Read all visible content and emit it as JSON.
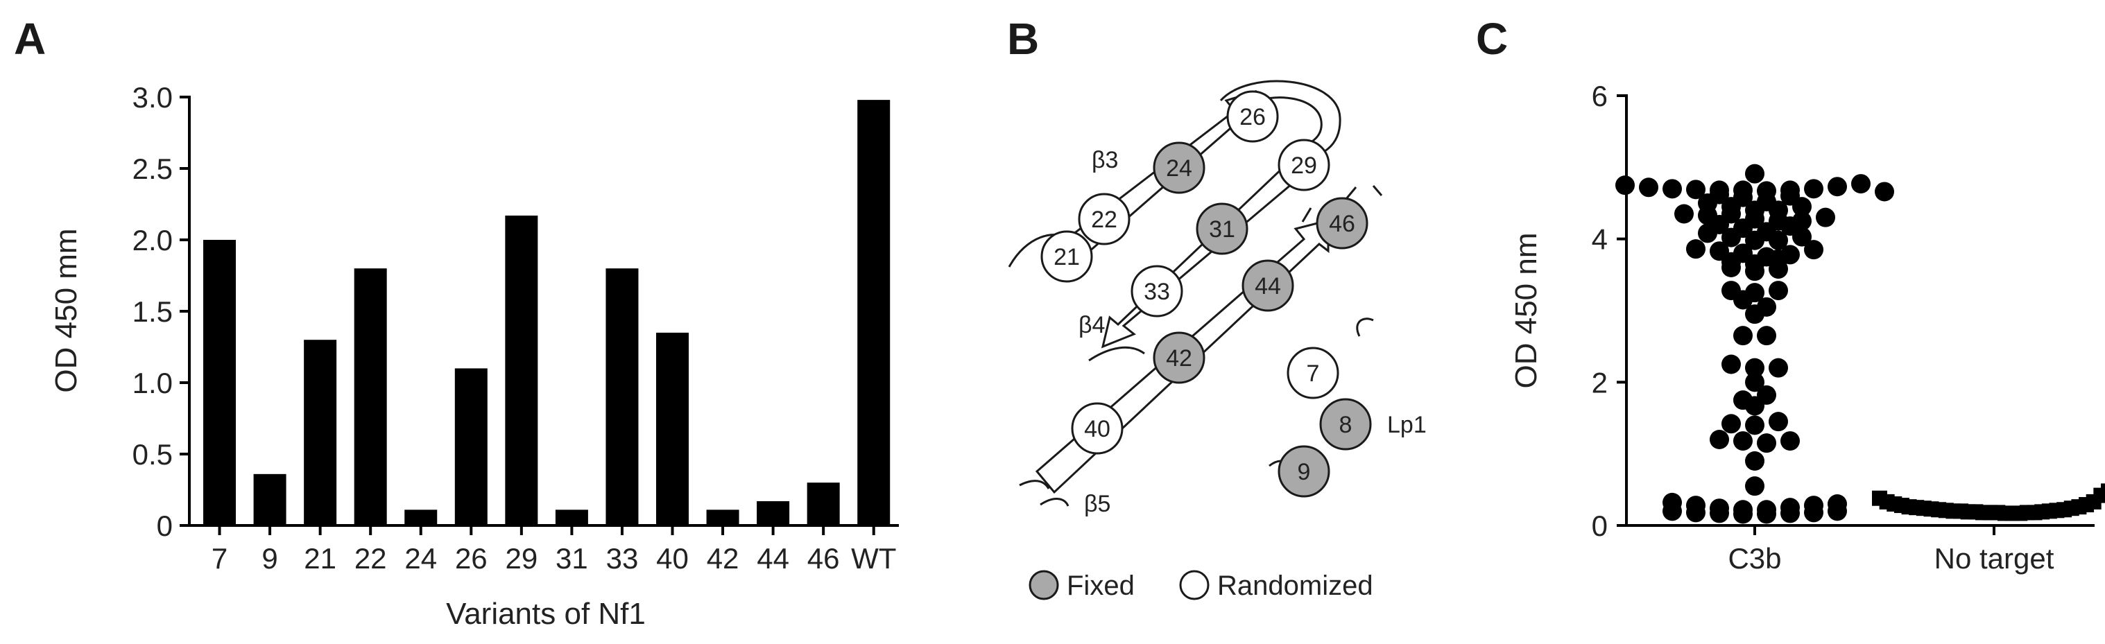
{
  "panels": {
    "a": "A",
    "b": "B",
    "c": "C"
  },
  "chart_data": [
    {
      "type": "bar",
      "categories": [
        "7",
        "9",
        "21",
        "22",
        "24",
        "26",
        "29",
        "31",
        "33",
        "40",
        "42",
        "44",
        "46",
        "WT"
      ],
      "values": [
        2.0,
        0.36,
        1.3,
        1.8,
        0.11,
        1.1,
        2.17,
        0.11,
        1.8,
        1.35,
        0.11,
        0.17,
        0.3,
        2.98
      ],
      "title": "",
      "xlabel": "Variants of Nf1",
      "ylabel": "OD 450 mm",
      "ylim": [
        0,
        3.0
      ],
      "yticks": [
        "0",
        "0.5",
        "1.0",
        "1.5",
        "2.0",
        "2.5",
        "3.0"
      ],
      "grid": false
    },
    {
      "type": "scatter",
      "categories": [
        "C3b",
        "No target"
      ],
      "ylabel": "OD 450 nm",
      "ylim": [
        0,
        6
      ],
      "yticks": [
        "0",
        "2",
        "4",
        "6"
      ],
      "series": [
        {
          "name": "C3b",
          "marker": "circle",
          "values": [
            4.75,
            4.72,
            4.7,
            4.69,
            4.68,
            4.68,
            4.67,
            4.68,
            4.7,
            4.73,
            4.77,
            4.91,
            4.62,
            4.58,
            4.5,
            4.45,
            4.4,
            4.35,
            4.33,
            4.35,
            4.4,
            4.45,
            4.52,
            4.6,
            4.66,
            4.28,
            4.25,
            4.2,
            4.15,
            4.08,
            4.02,
            3.98,
            3.98,
            4.03,
            4.1,
            4.18,
            4.25,
            4.3,
            3.86,
            3.83,
            3.8,
            3.75,
            3.68,
            3.6,
            3.55,
            3.58,
            3.65,
            3.72,
            3.78,
            3.85,
            3.28,
            3.15,
            3.25,
            3.28,
            2.95,
            3.05,
            2.65,
            2.65,
            2.25,
            2.2,
            2.2,
            2.0,
            1.75,
            1.67,
            1.82,
            1.2,
            1.18,
            1.42,
            1.15,
            0.9,
            1.18,
            1.4,
            1.45,
            0.55,
            0.32,
            0.28,
            0.24,
            0.22,
            0.2,
            0.18,
            0.17,
            0.16,
            0.16,
            0.17,
            0.18,
            0.2,
            0.22,
            0.25,
            0.28,
            0.3
          ]
        },
        {
          "name": "No target",
          "marker": "square",
          "values": [
            0.38,
            0.33,
            0.3,
            0.28,
            0.26,
            0.25,
            0.24,
            0.23,
            0.22,
            0.21,
            0.2,
            0.2,
            0.19,
            0.19,
            0.18,
            0.18,
            0.18,
            0.17,
            0.17,
            0.17,
            0.18,
            0.18,
            0.19,
            0.2,
            0.21,
            0.22,
            0.24,
            0.26,
            0.29,
            0.33,
            0.42,
            0.48
          ]
        }
      ]
    }
  ],
  "diagram": {
    "residues": [
      {
        "id": "21",
        "state": "randomized"
      },
      {
        "id": "22",
        "state": "randomized"
      },
      {
        "id": "24",
        "state": "fixed"
      },
      {
        "id": "26",
        "state": "randomized"
      },
      {
        "id": "29",
        "state": "randomized"
      },
      {
        "id": "31",
        "state": "fixed"
      },
      {
        "id": "33",
        "state": "randomized"
      },
      {
        "id": "44",
        "state": "fixed"
      },
      {
        "id": "46",
        "state": "fixed"
      },
      {
        "id": "42",
        "state": "fixed"
      },
      {
        "id": "40",
        "state": "randomized"
      },
      {
        "id": "7",
        "state": "randomized"
      },
      {
        "id": "8",
        "state": "fixed"
      },
      {
        "id": "9",
        "state": "fixed"
      }
    ],
    "strand_labels": {
      "b3": "β3",
      "b4": "β4",
      "b5": "β5",
      "lp1": "Lp1"
    },
    "legend": {
      "fixed": "Fixed",
      "randomized": "Randomized"
    },
    "colors": {
      "fixed": "#a9a9a9",
      "randomized": "#ffffff",
      "stroke": "#1a1a1a"
    }
  }
}
